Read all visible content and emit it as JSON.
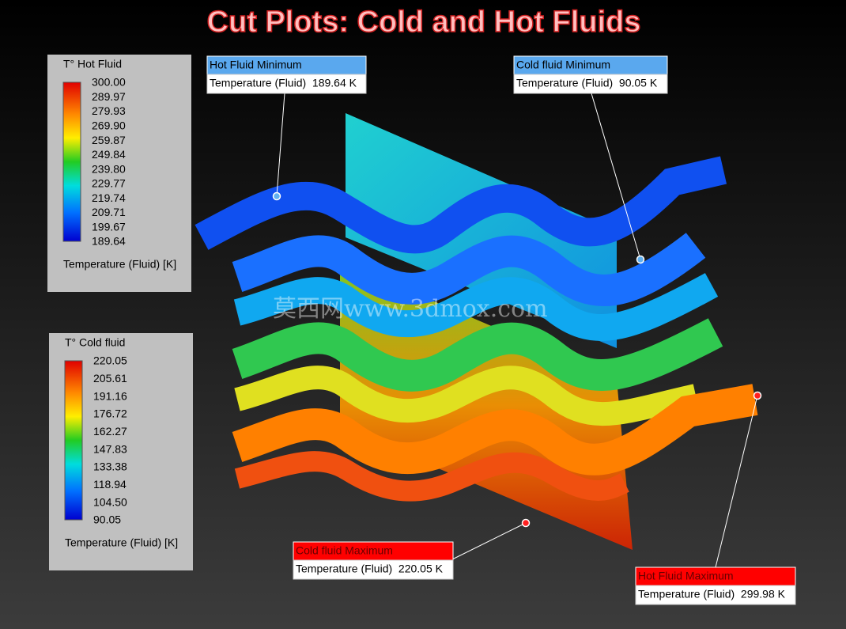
{
  "title": "Cut Plots: Cold and Hot Fluids",
  "watermark": "莫西网www.3dmox.com",
  "legends": [
    {
      "title": "T° Hot Fluid",
      "ticks": [
        "300.00",
        "289.97",
        "279.93",
        "269.90",
        "259.87",
        "249.84",
        "239.80",
        "229.77",
        "219.74",
        "209.71",
        "199.67",
        "189.64"
      ],
      "unit": "Temperature (Fluid) [K]"
    },
    {
      "title": "T° Cold fluid",
      "ticks": [
        "220.05",
        "205.61",
        "191.16",
        "176.72",
        "162.27",
        "147.83",
        "133.38",
        "118.94",
        "104.50",
        "90.05"
      ],
      "unit": "Temperature (Fluid) [K]"
    }
  ],
  "callouts": [
    {
      "header": "Hot Fluid Minimum",
      "body": "Temperature (Fluid)  189.64 K"
    },
    {
      "header": "Cold fluid Minimum",
      "body": "Temperature (Fluid)  90.05 K"
    },
    {
      "header": "Cold fluid Maximum",
      "body": "Temperature (Fluid)  220.05 K"
    },
    {
      "header": "Hot Fluid Maximum",
      "body": "Temperature (Fluid)  299.98 K"
    }
  ]
}
